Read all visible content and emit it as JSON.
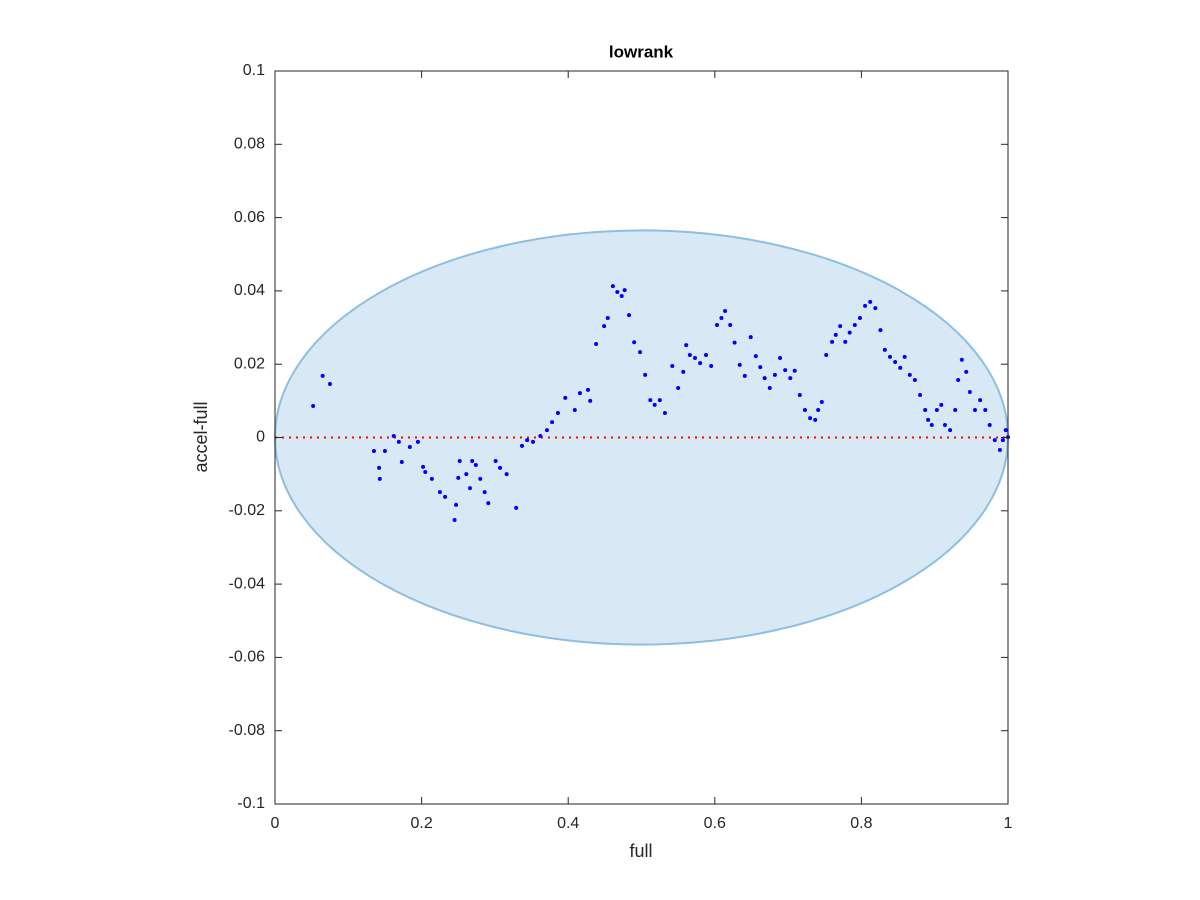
{
  "chart_data": {
    "type": "scatter",
    "title": "lowrank",
    "x_label": "full",
    "y_label": "accel-full",
    "xlim": [
      0,
      1
    ],
    "ylim": [
      -0.1,
      0.1
    ],
    "xticks": [
      0,
      0.2,
      0.4,
      0.6,
      0.8,
      1
    ],
    "yticks": [
      -0.1,
      -0.08,
      -0.06,
      -0.04,
      -0.02,
      0,
      0.02,
      0.04,
      0.06,
      0.08,
      0.1
    ],
    "grid": false,
    "ellipse": {
      "cx": 0.5,
      "cy": 0,
      "rx": 0.5,
      "ry": 0.0565,
      "color": "#d8e8f4",
      "edge_color": "#8cbfe0"
    },
    "reference_line": {
      "y": 0,
      "color": "#ff0000"
    },
    "series": [
      {
        "color": "#0000ff",
        "x": [
          0.052,
          0.065,
          0.075,
          0.135,
          0.142,
          0.143,
          0.15,
          0.162,
          0.169,
          0.173,
          0.184,
          0.195,
          0.202,
          0.205,
          0.214,
          0.225,
          0.232,
          0.245,
          0.247,
          0.25,
          0.252,
          0.261,
          0.266,
          0.269,
          0.274,
          0.28,
          0.286,
          0.291,
          0.301,
          0.307,
          0.316,
          0.329,
          0.337,
          0.344,
          0.352,
          0.362,
          0.371,
          0.378,
          0.386,
          0.396,
          0.409,
          0.416,
          0.427,
          0.43,
          0.438,
          0.449,
          0.454,
          0.461,
          0.467,
          0.473,
          0.477,
          0.483,
          0.49,
          0.498,
          0.505,
          0.512,
          0.518,
          0.525,
          0.532,
          0.542,
          0.55,
          0.557,
          0.561,
          0.566,
          0.573,
          0.58,
          0.588,
          0.595,
          0.603,
          0.609,
          0.614,
          0.621,
          0.627,
          0.634,
          0.641,
          0.649,
          0.656,
          0.662,
          0.668,
          0.675,
          0.682,
          0.689,
          0.696,
          0.703,
          0.709,
          0.716,
          0.723,
          0.73,
          0.737,
          0.741,
          0.746,
          0.752,
          0.76,
          0.765,
          0.771,
          0.778,
          0.784,
          0.791,
          0.798,
          0.805,
          0.812,
          0.819,
          0.826,
          0.832,
          0.839,
          0.846,
          0.853,
          0.859,
          0.866,
          0.873,
          0.88,
          0.887,
          0.891,
          0.896,
          0.903,
          0.909,
          0.914,
          0.921,
          0.928,
          0.932,
          0.937,
          0.943,
          0.948,
          0.955,
          0.962,
          0.969,
          0.975,
          0.982,
          0.989,
          0.993,
          0.997,
          1.0
        ],
        "values": [
          0.0086,
          0.0168,
          0.0146,
          -0.0037,
          -0.0083,
          -0.0113,
          -0.0037,
          0.0004,
          -0.0012,
          -0.0067,
          -0.0026,
          -0.0012,
          -0.008,
          -0.0094,
          -0.0113,
          -0.0149,
          -0.0162,
          -0.0225,
          -0.0184,
          -0.011,
          -0.0064,
          -0.01,
          -0.0138,
          -0.0064,
          -0.0075,
          -0.0113,
          -0.0149,
          -0.0179,
          -0.0064,
          -0.0083,
          -0.01,
          -0.0192,
          -0.0023,
          -0.0007,
          -0.0012,
          0.0004,
          0.002,
          0.0042,
          0.0067,
          0.0108,
          0.0075,
          0.0121,
          0.013,
          0.01,
          0.0255,
          0.0304,
          0.0326,
          0.0413,
          0.0397,
          0.0386,
          0.0402,
          0.0334,
          0.026,
          0.0233,
          0.0171,
          0.0102,
          0.0089,
          0.0102,
          0.0067,
          0.0195,
          0.0135,
          0.0179,
          0.0252,
          0.0225,
          0.0217,
          0.0203,
          0.0225,
          0.0195,
          0.0307,
          0.0326,
          0.0345,
          0.0307,
          0.0259,
          0.0198,
          0.0168,
          0.0274,
          0.0222,
          0.0192,
          0.0162,
          0.0135,
          0.0171,
          0.0217,
          0.0184,
          0.0162,
          0.0182,
          0.0116,
          0.0075,
          0.0053,
          0.0048,
          0.0075,
          0.0097,
          0.0225,
          0.0261,
          0.028,
          0.0304,
          0.0261,
          0.0286,
          0.0307,
          0.0326,
          0.0359,
          0.037,
          0.0353,
          0.0293,
          0.0239,
          0.022,
          0.0206,
          0.019,
          0.022,
          0.0171,
          0.0157,
          0.0116,
          0.0075,
          0.0048,
          0.0034,
          0.0075,
          0.0089,
          0.0034,
          0.002,
          0.0075,
          0.0157,
          0.0212,
          0.0179,
          0.0124,
          0.0075,
          0.0102,
          0.0075,
          0.0034,
          -0.0007,
          -0.0034,
          -0.0007,
          0.002,
          0.0001
        ]
      }
    ]
  }
}
